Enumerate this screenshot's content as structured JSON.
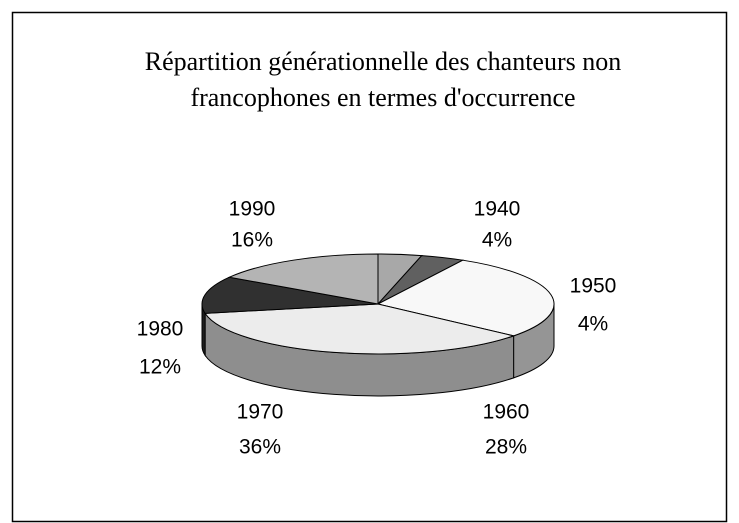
{
  "chart_data": {
    "type": "pie3d",
    "title": "Répartition générationnelle des chanteurs non francophones en termes d'occurrence",
    "categories": [
      "1940",
      "1950",
      "1960",
      "1970",
      "1980",
      "1990"
    ],
    "values": [
      4,
      4,
      28,
      36,
      12,
      16
    ],
    "value_labels": [
      "4%",
      "4%",
      "28%",
      "36%",
      "12%",
      "16%"
    ],
    "colors": [
      "#a8a8a8",
      "#606060",
      "#f8f8f8",
      "#ececec",
      "#303030",
      "#b4b4b4"
    ]
  }
}
